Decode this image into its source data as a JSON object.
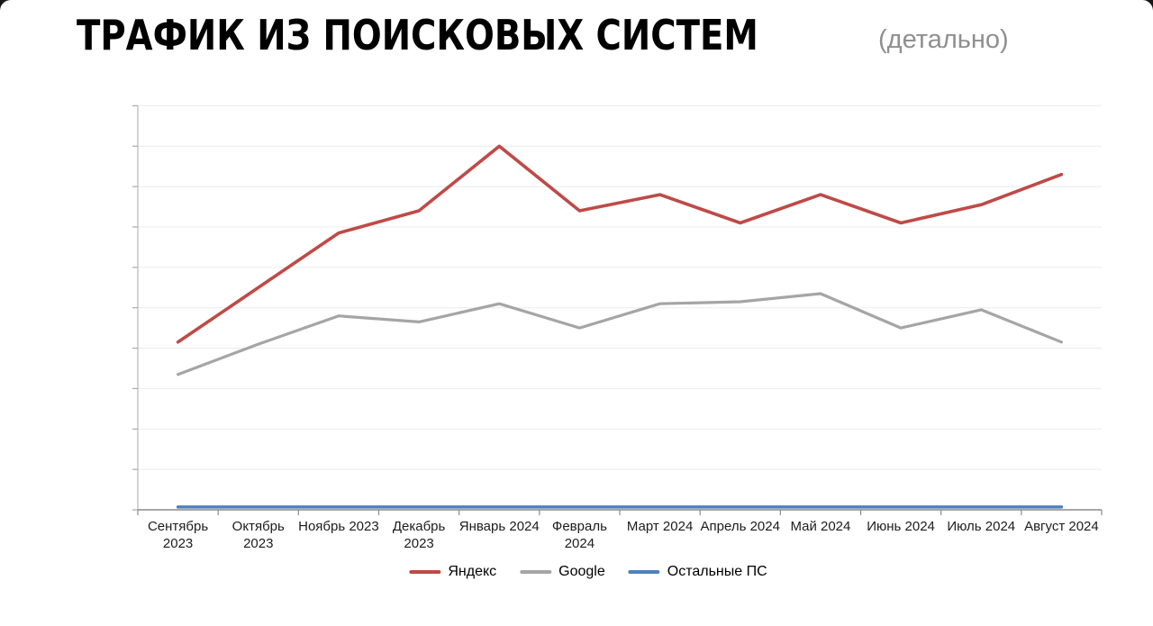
{
  "header": {
    "title": "ТРАФИК ИЗ ПОИСКОВЫХ СИСТЕМ",
    "subtitle": "(детально)"
  },
  "colors": {
    "yandex": "#bf4a47",
    "google": "#a5a5a5",
    "other_ps": "#4f81bd",
    "gridline": "#ebebeb",
    "spine_left": "#c2c2c2",
    "axis_bottom": "#8a8a8a",
    "tick": "#a9a9a9",
    "axis_label": "#1c1c1c",
    "subtitle_gray": "#8f8f8f"
  },
  "chart_data": {
    "type": "line",
    "title": "ТРАФИК ИЗ ПОИСКОВЫХ СИСТЕМ (детально)",
    "categories": [
      "Сентябрь 2023",
      "Октябрь 2023",
      "Ноябрь 2023",
      "Декабрь 2023",
      "Январь 2024",
      "Февраль 2024",
      "Март 2024",
      "Апрель 2024",
      "Май 2024",
      "Июнь 2024",
      "Июль 2024",
      "Август 2024"
    ],
    "x_tick_labels": [
      "Сентябрь\n2023",
      "Октябрь\n2023",
      "Ноябрь 2023",
      "Декабрь\n2023",
      "Январь 2024",
      "Февраль\n2024",
      "Март 2024",
      "Апрель 2024",
      "Май 2024",
      "Июнь 2024",
      "Июль 2024",
      "Август 2024"
    ],
    "series": [
      {
        "name": "Яндекс",
        "color": "#bf4a47",
        "values": [
          4.15,
          5.5,
          6.85,
          7.4,
          9.0,
          7.4,
          7.8,
          7.1,
          7.8,
          7.1,
          7.55,
          8.3
        ]
      },
      {
        "name": "Google",
        "color": "#a5a5a5",
        "values": [
          3.35,
          4.1,
          4.8,
          4.65,
          5.1,
          4.5,
          5.1,
          5.15,
          5.35,
          4.5,
          4.95,
          4.15
        ]
      },
      {
        "name": "Остальные ПС",
        "color": "#4f81bd",
        "values": [
          0.07,
          0.07,
          0.07,
          0.07,
          0.07,
          0.07,
          0.07,
          0.07,
          0.07,
          0.07,
          0.07,
          0.07
        ]
      }
    ],
    "xlabel": "",
    "ylabel": "",
    "ylim": [
      0,
      10
    ],
    "gridline_count": 10,
    "y_axis_labels_visible": false,
    "y_units": "relative gridline units (no numeric y labels shown)",
    "grid": "horizontal",
    "legend_position": "bottom-center"
  }
}
